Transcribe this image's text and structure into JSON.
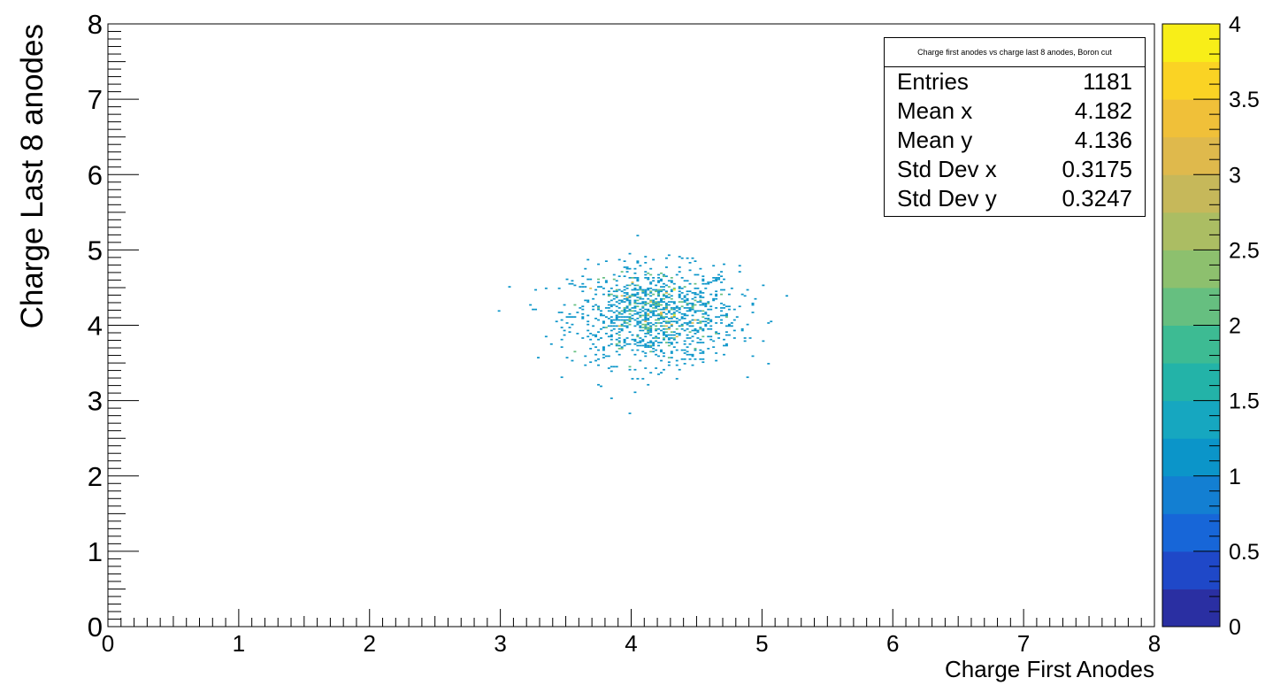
{
  "chart_data": {
    "type": "heatmap",
    "xlabel": "Charge First Anodes",
    "ylabel": "Charge Last 8 anodes",
    "xlim": [
      0,
      8
    ],
    "ylim": [
      0,
      8
    ],
    "x_ticks": [
      "0",
      "1",
      "2",
      "3",
      "4",
      "5",
      "6",
      "7",
      "8"
    ],
    "y_ticks": [
      "0",
      "1",
      "2",
      "3",
      "4",
      "5",
      "6",
      "7",
      "8"
    ],
    "z_range": [
      0,
      4
    ],
    "z_ticks": [
      "0",
      "0.5",
      "1",
      "1.5",
      "2",
      "2.5",
      "3",
      "3.5",
      "4"
    ],
    "colormap": [
      "#2a2fa2",
      "#1f48c8",
      "#1766d8",
      "#137fd2",
      "#0b95c9",
      "#16a7c0",
      "#23b3a8",
      "#3dbb93",
      "#66bf80",
      "#8dc06e",
      "#abbd63",
      "#c6b85a",
      "#dfb94c",
      "#f0c039",
      "#fad324",
      "#f8ee18"
    ],
    "cluster": {
      "entries": 1181,
      "mean_x": 4.182,
      "mean_y": 4.136,
      "std_x": 0.3175,
      "std_y": 0.3247
    }
  },
  "stats": {
    "title": "Charge first anodes vs charge last 8 anodes, Boron cut",
    "rows": [
      {
        "label": "Entries",
        "value": "1181"
      },
      {
        "label": "Mean x",
        "value": "4.182"
      },
      {
        "label": "Mean y",
        "value": "4.136"
      },
      {
        "label": "Std Dev x",
        "value": "0.3175"
      },
      {
        "label": "Std Dev y",
        "value": "0.3247"
      }
    ]
  }
}
